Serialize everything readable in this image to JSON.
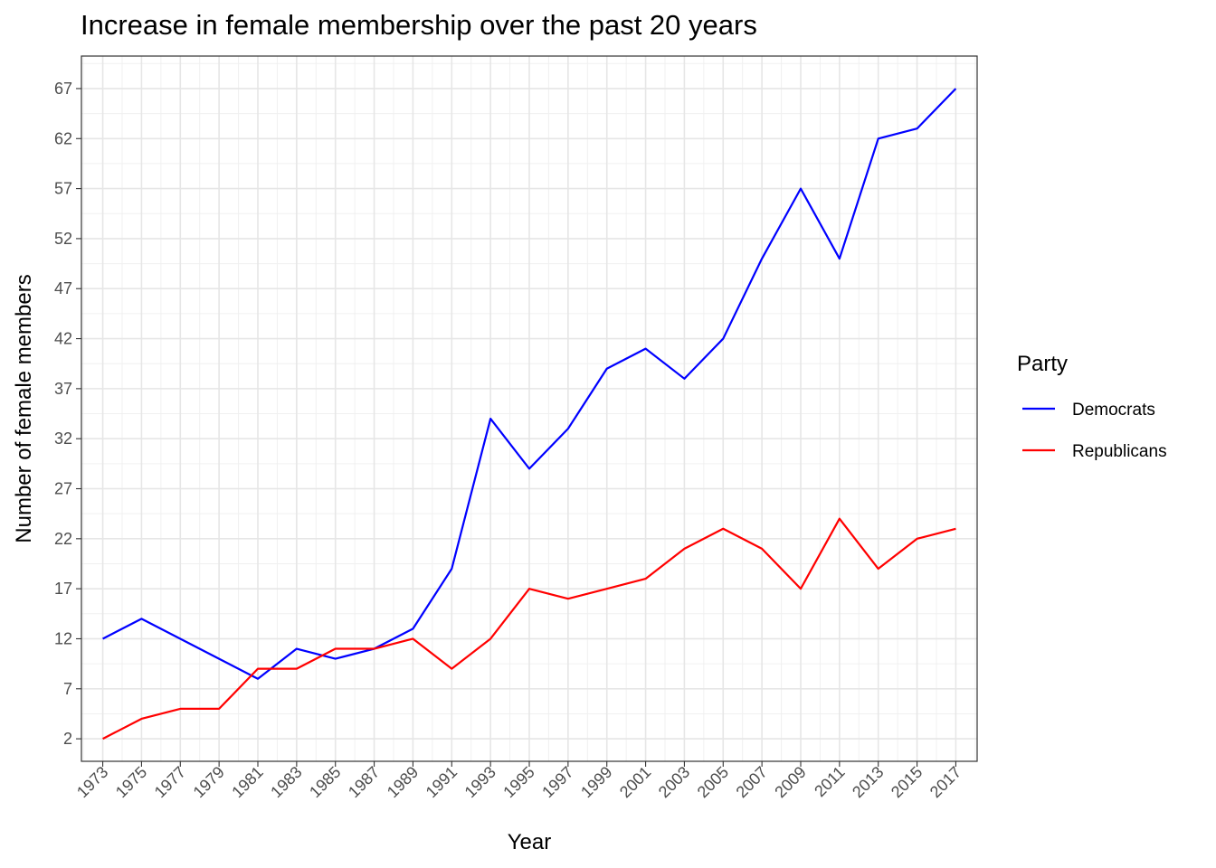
{
  "chart_data": {
    "type": "line",
    "title": "Increase in female membership over the past 20 years",
    "xlabel": "Year",
    "ylabel": "Number of female members",
    "x": [
      1973,
      1975,
      1977,
      1979,
      1981,
      1983,
      1985,
      1987,
      1989,
      1991,
      1993,
      1995,
      1997,
      1999,
      2001,
      2003,
      2005,
      2007,
      2009,
      2011,
      2013,
      2015,
      2017
    ],
    "x_tick_labels": [
      "1973",
      "1975",
      "1977",
      "1979",
      "1981",
      "1983",
      "1985",
      "1987",
      "1989",
      "1991",
      "1993",
      "1995",
      "1997",
      "1999",
      "2001",
      "2003",
      "2005",
      "2007",
      "2009",
      "2011",
      "2013",
      "2015",
      "2017"
    ],
    "y_tick_labels": [
      "2",
      "7",
      "12",
      "17",
      "22",
      "27",
      "32",
      "37",
      "42",
      "47",
      "52",
      "57",
      "62",
      "67"
    ],
    "y_ticks": [
      2,
      7,
      12,
      17,
      22,
      27,
      32,
      37,
      42,
      47,
      52,
      57,
      62,
      67
    ],
    "xlim": [
      1971.9,
      2018.1
    ],
    "ylim": [
      -0.25,
      70.25
    ],
    "grid": true,
    "legend": {
      "title": "Party",
      "position": "right"
    },
    "series": [
      {
        "name": "Democrats",
        "color": "#0000ff",
        "values": [
          12,
          14,
          12,
          10,
          8,
          11,
          10,
          11,
          13,
          19,
          34,
          29,
          33,
          39,
          41,
          38,
          42,
          50,
          57,
          50,
          62,
          63,
          67
        ]
      },
      {
        "name": "Republicans",
        "color": "#ff0000",
        "values": [
          2,
          4,
          5,
          5,
          9,
          9,
          11,
          11,
          12,
          9,
          12,
          17,
          16,
          17,
          18,
          21,
          23,
          21,
          17,
          24,
          19,
          22,
          23
        ]
      }
    ]
  }
}
